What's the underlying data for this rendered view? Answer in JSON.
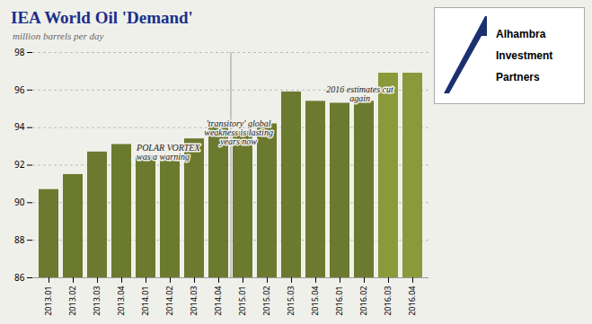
{
  "chart_data": {
    "type": "bar",
    "title": "IEA World Oil 'Demand'",
    "subtitle": "million barrels per day",
    "categories": [
      "2013.01",
      "2013.02",
      "2013.03",
      "2013.04",
      "2014.01",
      "2014.02",
      "2014.03",
      "2014.04",
      "2015.01",
      "2015.02",
      "2015.03",
      "2015.04",
      "2016.01",
      "2016.02",
      "2016.03",
      "2016.04"
    ],
    "values": [
      90.7,
      91.5,
      92.7,
      93.1,
      92.5,
      92.5,
      93.4,
      94.3,
      93.8,
      94.2,
      95.9,
      95.4,
      95.3,
      95.4,
      96.9,
      96.9
    ],
    "colors": [
      "#6b7a2e",
      "#6b7a2e",
      "#6b7a2e",
      "#6b7a2e",
      "#6b7a2e",
      "#6b7a2e",
      "#6b7a2e",
      "#6b7a2e",
      "#6b7a2e",
      "#6b7a2e",
      "#6b7a2e",
      "#6b7a2e",
      "#6b7a2e",
      "#6b7a2e",
      "#8a9a3a",
      "#8a9a3a"
    ],
    "ylim": [
      86,
      98
    ],
    "yticks": [
      86,
      88,
      90,
      92,
      94,
      96,
      98
    ],
    "grid": true,
    "annotations": [
      {
        "text": "POLAR VORTEX\nwas a warning",
        "x": "2013.04",
        "y": 93.1
      },
      {
        "text": "'transitory' global\nweakness is lasting\nyears now",
        "x": "2014.04",
        "y": 94.4
      },
      {
        "text": "2016 estimates cut\nagain",
        "x": "2016.01",
        "y": 96.2
      },
      {
        "text": "Alhambra\nInvestment\nPartners"
      }
    ]
  }
}
